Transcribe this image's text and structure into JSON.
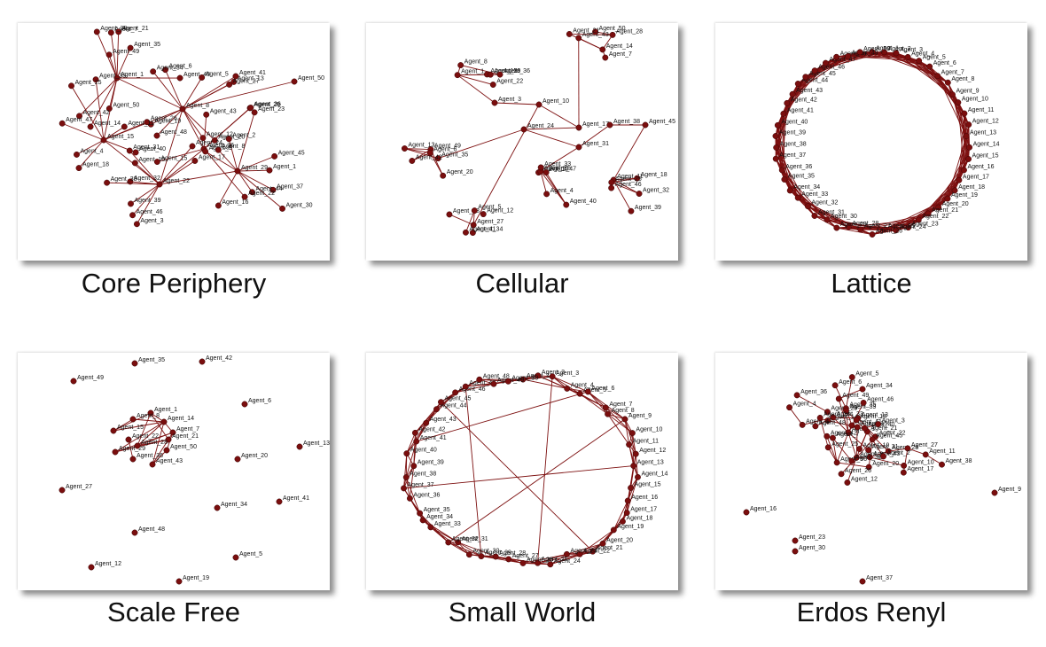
{
  "colors": {
    "edge": "#7d1010",
    "node": "#7a0e0e",
    "caption": "#111111",
    "background": "#ffffff"
  },
  "panels": [
    {
      "id": "core-periphery",
      "caption": "Core Periphery",
      "layout": "hubs"
    },
    {
      "id": "cellular",
      "caption": "Cellular",
      "layout": "cells"
    },
    {
      "id": "lattice",
      "caption": "Lattice",
      "layout": "ring-dense"
    },
    {
      "id": "scale-free",
      "caption": "Scale Free",
      "layout": "sparse"
    },
    {
      "id": "small-world",
      "caption": "Small World",
      "layout": "ring-chords"
    },
    {
      "id": "erdos-renyl",
      "caption": "Erdos Renyl",
      "layout": "random-tree"
    }
  ],
  "node_label_prefix": "Agent_"
}
